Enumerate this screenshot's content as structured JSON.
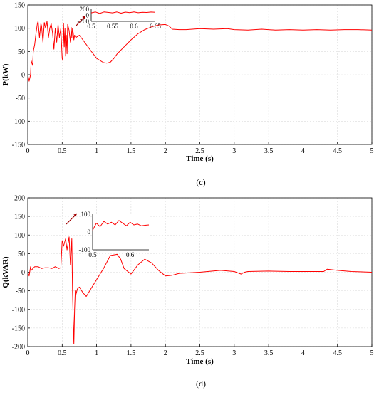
{
  "figure": {
    "captions": [
      "(c)",
      "(d)"
    ]
  },
  "chart_data": [
    {
      "type": "line",
      "title": "",
      "xlabel": "Time (s)",
      "ylabel": "P(kW)",
      "xlim": [
        0,
        5
      ],
      "ylim": [
        -150,
        150
      ],
      "xticks": [
        "0",
        "0.5",
        "1",
        "1.5",
        "2",
        "2.5",
        "3",
        "3.5",
        "4",
        "4.5",
        "5"
      ],
      "yticks": [
        "-150",
        "-100",
        "-50",
        "0",
        "50",
        "100",
        "150"
      ],
      "grid": true,
      "line_color": "#ff0000",
      "series": [
        {
          "x": [
            0,
            0.02,
            0.04,
            0.05,
            0.07,
            0.08,
            0.1,
            0.12,
            0.14,
            0.15,
            0.17,
            0.19,
            0.2,
            0.22,
            0.24,
            0.26,
            0.28,
            0.3,
            0.32,
            0.34,
            0.36,
            0.38,
            0.4,
            0.42,
            0.44,
            0.46,
            0.48,
            0.5,
            0.51,
            0.52,
            0.53,
            0.54,
            0.55,
            0.56,
            0.57,
            0.58,
            0.6,
            0.62,
            0.63,
            0.64,
            0.65,
            0.66,
            0.67,
            0.68,
            0.7,
            0.75,
            0.8,
            0.9,
            1.0,
            1.1,
            1.15,
            1.2,
            1.25,
            1.3,
            1.4,
            1.5,
            1.6,
            1.7,
            1.8,
            1.9,
            2.0,
            2.05,
            2.1,
            2.2,
            2.3,
            2.5,
            2.7,
            2.9,
            3.0,
            3.2,
            3.4,
            3.6,
            3.8,
            4.0,
            4.2,
            4.4,
            4.6,
            4.8,
            5.0
          ],
          "y": [
            0,
            -14,
            0,
            30,
            20,
            50,
            65,
            90,
            110,
            115,
            80,
            110,
            105,
            70,
            112,
            100,
            115,
            80,
            100,
            110,
            90,
            55,
            100,
            70,
            108,
            80,
            100,
            35,
            30,
            110,
            60,
            100,
            40,
            85,
            45,
            108,
            95,
            70,
            102,
            80,
            100,
            90,
            75,
            85,
            80,
            85,
            75,
            55,
            35,
            26,
            25,
            27,
            35,
            45,
            60,
            75,
            88,
            97,
            103,
            107,
            108,
            105,
            98,
            97,
            97,
            99,
            98,
            99,
            97,
            96,
            98,
            96,
            97,
            96,
            97,
            96,
            97,
            97,
            96
          ]
        }
      ],
      "inset": {
        "xlim": [
          0.5,
          0.65
        ],
        "ylim": [
          -200,
          200
        ],
        "xticks": [
          "0.5",
          "0.55",
          "0.6",
          "0.65"
        ],
        "yticks": [
          "200",
          "0",
          "-200"
        ],
        "x": [
          0.5,
          0.51,
          0.52,
          0.53,
          0.55,
          0.56,
          0.57,
          0.58,
          0.59,
          0.6,
          0.61,
          0.62,
          0.63,
          0.64,
          0.65
        ],
        "y": [
          80,
          110,
          60,
          110,
          80,
          110,
          70,
          105,
          90,
          110,
          85,
          100,
          95,
          108,
          102
        ]
      }
    },
    {
      "type": "line",
      "title": "",
      "xlabel": "Time (s)",
      "ylabel": "Q(kVAR)",
      "xlim": [
        0,
        5
      ],
      "ylim": [
        -200,
        200
      ],
      "xticks": [
        "0",
        "0.5",
        "1",
        "1.5",
        "2",
        "2.5",
        "3",
        "3.5",
        "4",
        "4.5",
        "5"
      ],
      "yticks": [
        "-200",
        "-150",
        "-100",
        "-50",
        "0",
        "50",
        "100",
        "150",
        "200"
      ],
      "grid": true,
      "line_color": "#ff0000",
      "series": [
        {
          "x": [
            0,
            0.02,
            0.04,
            0.05,
            0.1,
            0.15,
            0.2,
            0.25,
            0.3,
            0.35,
            0.4,
            0.45,
            0.48,
            0.5,
            0.52,
            0.55,
            0.57,
            0.6,
            0.62,
            0.64,
            0.65,
            0.66,
            0.67,
            0.68,
            0.69,
            0.7,
            0.72,
            0.75,
            0.8,
            0.85,
            0.9,
            1.0,
            1.1,
            1.2,
            1.3,
            1.35,
            1.4,
            1.5,
            1.6,
            1.7,
            1.75,
            1.8,
            1.9,
            2.0,
            2.1,
            2.2,
            2.5,
            2.8,
            3.0,
            3.1,
            3.15,
            3.2,
            3.5,
            3.8,
            4.0,
            4.3,
            4.35,
            4.5,
            4.7,
            5.0
          ],
          "y": [
            0,
            -10,
            15,
            5,
            15,
            15,
            10,
            12,
            12,
            10,
            15,
            10,
            12,
            85,
            70,
            90,
            60,
            95,
            20,
            90,
            -50,
            -130,
            -193,
            -100,
            -50,
            -60,
            -45,
            -40,
            -55,
            -65,
            -50,
            -20,
            10,
            45,
            48,
            35,
            10,
            -5,
            20,
            35,
            30,
            25,
            5,
            -10,
            -8,
            -3,
            0,
            5,
            2,
            -5,
            0,
            2,
            3,
            2,
            2,
            2,
            8,
            5,
            2,
            0
          ]
        }
      ],
      "inset": {
        "xlim": [
          0.5,
          0.65
        ],
        "ylim": [
          -100,
          100
        ],
        "xticks": [
          "0.5",
          "0.6"
        ],
        "yticks": [
          "100",
          "0",
          "-100"
        ],
        "x": [
          0.5,
          0.51,
          0.52,
          0.53,
          0.54,
          0.55,
          0.56,
          0.57,
          0.58,
          0.59,
          0.6,
          0.61,
          0.62,
          0.63,
          0.64,
          0.65
        ],
        "y": [
          10,
          50,
          30,
          60,
          45,
          55,
          40,
          65,
          50,
          35,
          55,
          40,
          45,
          35,
          38,
          40
        ]
      }
    }
  ]
}
